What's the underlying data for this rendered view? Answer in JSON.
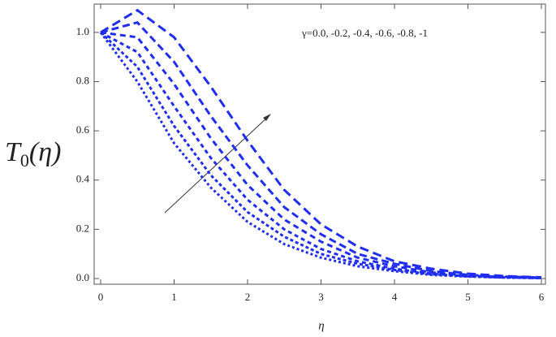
{
  "chart_data": {
    "type": "line",
    "annotation": "γ=0.0, -0.2, -0.4, -0.6, -0.8, -1",
    "ylabel": {
      "main": "T",
      "sub": "0",
      "rest": "(η)"
    },
    "xlabel": "η",
    "x": [
      0,
      0.5,
      1,
      1.5,
      2,
      2.5,
      3,
      3.5,
      4,
      4.5,
      5,
      5.5,
      6
    ],
    "series": [
      {
        "color": "#1f2ef0",
        "dash": "11,6",
        "values": [
          1.0,
          1.09,
          0.98,
          0.78,
          0.56,
          0.36,
          0.22,
          0.13,
          0.07,
          0.04,
          0.02,
          0.01,
          0.005
        ]
      },
      {
        "color": "#1f2ef0",
        "dash": "9,5",
        "values": [
          1.0,
          1.04,
          0.88,
          0.66,
          0.46,
          0.29,
          0.18,
          0.1,
          0.06,
          0.03,
          0.015,
          0.008,
          0.004
        ]
      },
      {
        "color": "#1f2ef0",
        "dash": "7,5",
        "values": [
          1.0,
          0.98,
          0.79,
          0.57,
          0.38,
          0.24,
          0.15,
          0.085,
          0.05,
          0.025,
          0.012,
          0.006,
          0.003
        ]
      },
      {
        "color": "#1f2ef0",
        "dash": "5,4",
        "values": [
          1.0,
          0.92,
          0.7,
          0.49,
          0.32,
          0.2,
          0.12,
          0.07,
          0.04,
          0.02,
          0.01,
          0.005,
          0.002
        ]
      },
      {
        "color": "#1f2ef0",
        "dash": "4,3",
        "values": [
          1.0,
          0.86,
          0.62,
          0.42,
          0.27,
          0.17,
          0.1,
          0.06,
          0.035,
          0.018,
          0.009,
          0.004,
          0.002
        ]
      },
      {
        "color": "#1f2ef0",
        "dash": "3,3",
        "values": [
          1.0,
          0.8,
          0.55,
          0.37,
          0.23,
          0.14,
          0.085,
          0.05,
          0.03,
          0.015,
          0.008,
          0.004,
          0.002
        ]
      }
    ],
    "xlim": [
      -0.088,
      6.055
    ],
    "ylim": [
      -0.023,
      1.115
    ],
    "xticks": [
      0,
      1,
      2,
      3,
      4,
      5,
      6
    ],
    "yticks": [
      {
        "value": 0,
        "label": "0.0"
      },
      0.2,
      0.4,
      0.6,
      0.8,
      {
        "value": 1,
        "label": "1.0"
      }
    ],
    "grid": false
  }
}
